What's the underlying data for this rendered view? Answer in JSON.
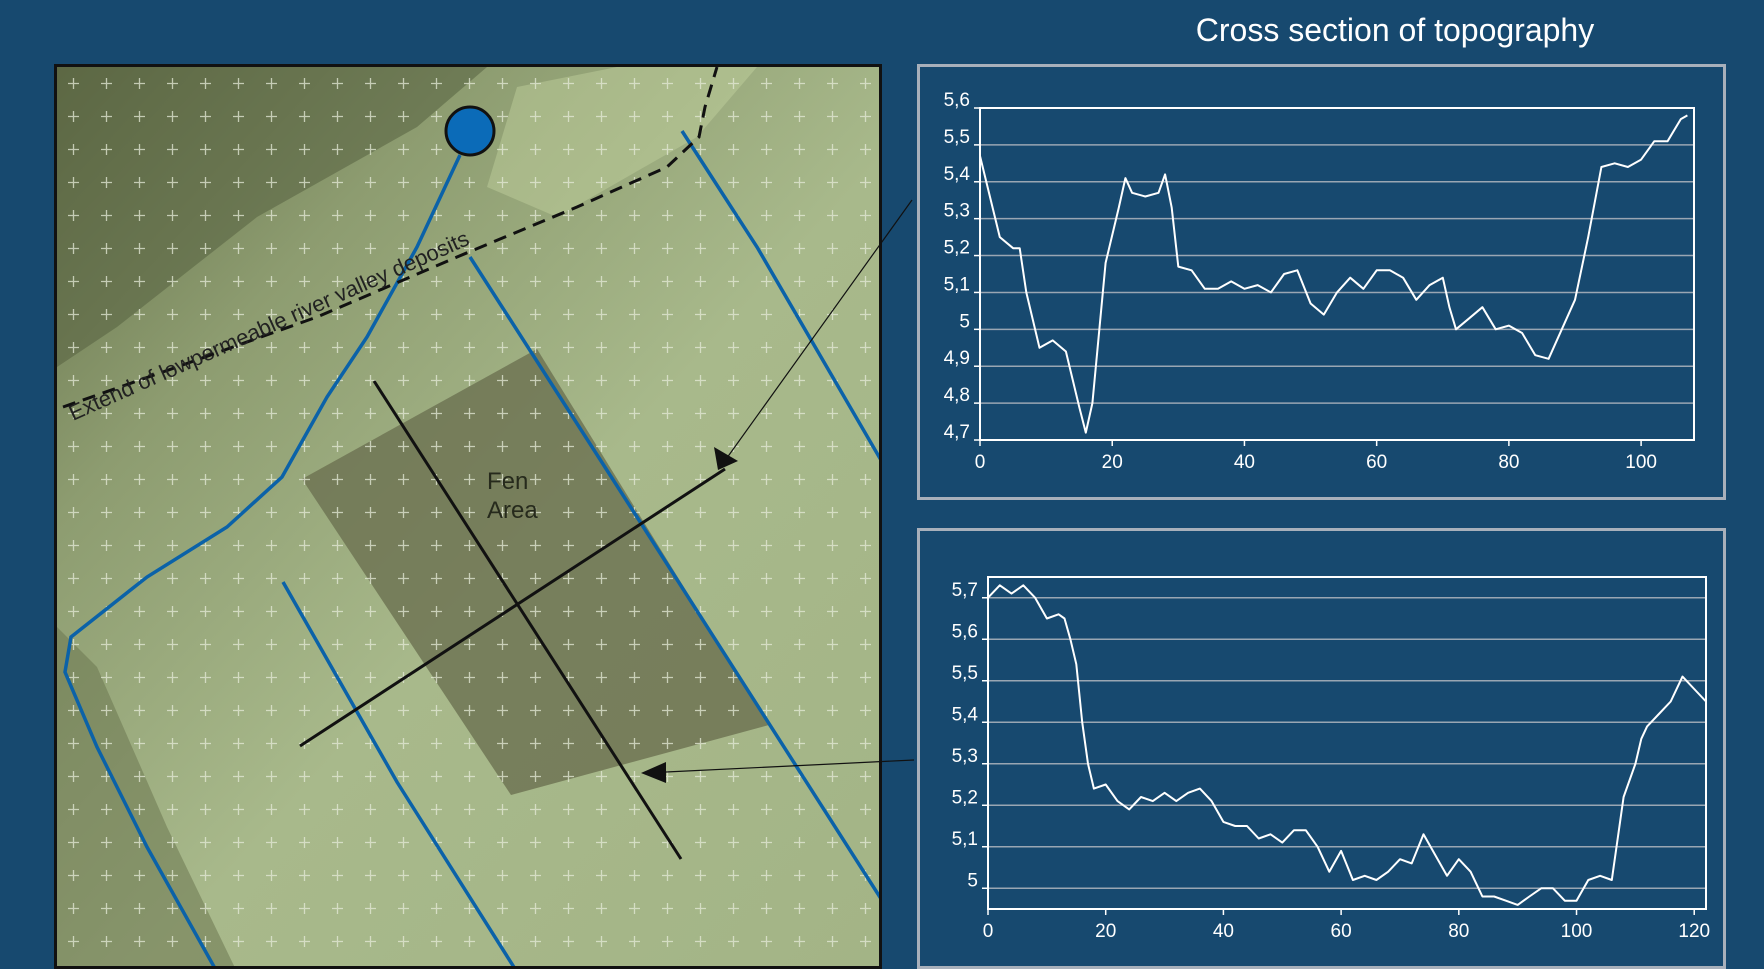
{
  "figure": {
    "title": "Cross section of topography"
  },
  "map": {
    "deposit_label": "Extend of lowpermeable river valley deposits",
    "fen_label_line1": "Fen",
    "fen_label_line2": "Area",
    "colors": {
      "terrain": "#a7b88a",
      "terrain_dark": "#55603f",
      "fen": "#6e7454",
      "river": "#0b62a8",
      "grid_cross": "#e4ead7",
      "section_line": "#111111"
    },
    "icons": [
      "location-marker-icon"
    ]
  },
  "chart_data": [
    {
      "type": "line",
      "title": "",
      "xlabel": "",
      "ylabel": "",
      "xlim": [
        0,
        108
      ],
      "ylim": [
        4.7,
        5.6
      ],
      "x_ticks": [
        "0",
        "20",
        "40",
        "60",
        "80",
        "100"
      ],
      "y_ticks": [
        "4,7",
        "4,8",
        "4,9",
        "5",
        "5,1",
        "5,2",
        "5,3",
        "5,4",
        "5,5",
        "5,6"
      ],
      "grid": "horizontal",
      "series": [
        {
          "color": "#ffffff",
          "x": [
            0,
            3,
            5,
            6,
            7,
            9,
            11,
            13,
            15,
            16,
            17,
            19,
            21,
            22,
            23,
            25,
            27,
            28,
            29,
            30,
            32,
            34,
            36,
            38,
            40,
            42,
            44,
            46,
            48,
            50,
            52,
            54,
            56,
            58,
            60,
            62,
            64,
            66,
            68,
            70,
            71,
            72,
            74,
            76,
            78,
            80,
            82,
            84,
            86,
            88,
            90,
            92,
            94,
            96,
            98,
            100,
            102,
            103,
            104,
            106,
            107
          ],
          "y": [
            5.47,
            5.25,
            5.22,
            5.22,
            5.1,
            4.95,
            4.97,
            4.94,
            4.79,
            4.72,
            4.8,
            5.18,
            5.33,
            5.41,
            5.37,
            5.36,
            5.37,
            5.42,
            5.33,
            5.17,
            5.16,
            5.11,
            5.11,
            5.13,
            5.11,
            5.12,
            5.1,
            5.15,
            5.16,
            5.07,
            5.04,
            5.1,
            5.14,
            5.11,
            5.16,
            5.16,
            5.14,
            5.08,
            5.12,
            5.14,
            5.06,
            5.0,
            5.03,
            5.06,
            5.0,
            5.01,
            4.99,
            4.93,
            4.92,
            5.0,
            5.08,
            5.25,
            5.44,
            5.45,
            5.44,
            5.46,
            5.51,
            5.51,
            5.51,
            5.57,
            5.58
          ]
        }
      ]
    },
    {
      "type": "line",
      "title": "",
      "xlabel": "",
      "ylabel": "",
      "xlim": [
        0,
        122
      ],
      "ylim": [
        4.95,
        5.75
      ],
      "x_ticks": [
        "0",
        "20",
        "40",
        "60",
        "80",
        "100",
        "120"
      ],
      "y_ticks": [
        "5",
        "5,1",
        "5,2",
        "5,3",
        "5,4",
        "5,5",
        "5,6",
        "5,7"
      ],
      "grid": "horizontal",
      "series": [
        {
          "color": "#ffffff",
          "x": [
            0,
            2,
            4,
            6,
            8,
            10,
            12,
            13,
            14,
            15,
            16,
            17,
            18,
            20,
            22,
            24,
            26,
            28,
            30,
            32,
            34,
            36,
            38,
            40,
            42,
            44,
            46,
            48,
            50,
            52,
            54,
            56,
            58,
            60,
            62,
            64,
            66,
            68,
            70,
            72,
            74,
            76,
            78,
            80,
            82,
            84,
            86,
            88,
            90,
            92,
            94,
            96,
            98,
            100,
            102,
            104,
            106,
            108,
            110,
            111,
            112,
            114,
            116,
            118,
            120,
            122
          ],
          "y": [
            5.7,
            5.73,
            5.71,
            5.73,
            5.7,
            5.65,
            5.66,
            5.65,
            5.6,
            5.54,
            5.4,
            5.3,
            5.24,
            5.25,
            5.21,
            5.19,
            5.22,
            5.21,
            5.23,
            5.21,
            5.23,
            5.24,
            5.21,
            5.16,
            5.15,
            5.15,
            5.12,
            5.13,
            5.11,
            5.14,
            5.14,
            5.1,
            5.04,
            5.09,
            5.02,
            5.03,
            5.02,
            5.04,
            5.07,
            5.06,
            5.13,
            5.08,
            5.03,
            5.07,
            5.04,
            4.98,
            4.98,
            4.97,
            4.96,
            4.98,
            5.0,
            5.0,
            4.97,
            4.97,
            5.02,
            5.03,
            5.02,
            5.22,
            5.3,
            5.36,
            5.39,
            5.42,
            5.45,
            5.51,
            5.48,
            5.45
          ]
        }
      ]
    }
  ]
}
